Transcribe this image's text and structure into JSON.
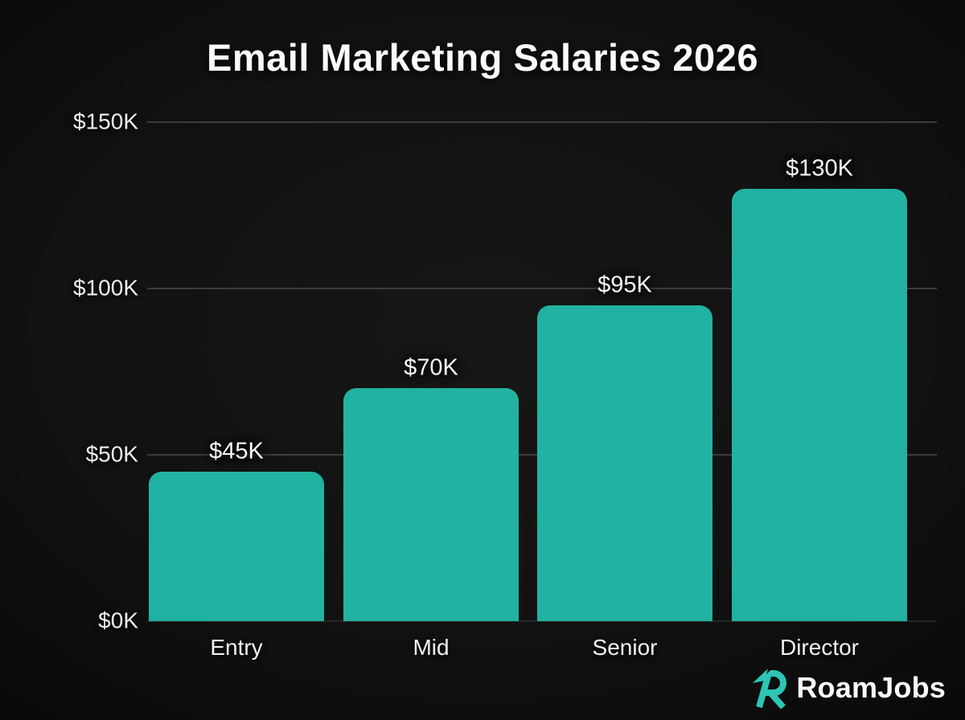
{
  "title": "Email Marketing Salaries 2026",
  "chart_data": {
    "type": "bar",
    "title": "Email Marketing Salaries 2026",
    "categories": [
      "Entry",
      "Mid",
      "Senior",
      "Director"
    ],
    "values": [
      45,
      70,
      95,
      130
    ],
    "value_labels": [
      "$45K",
      "$70K",
      "$95K",
      "$130K"
    ],
    "xlabel": "",
    "ylabel": "",
    "ylim": [
      0,
      150
    ],
    "y_ticks": [
      0,
      50,
      100,
      150
    ],
    "y_tick_labels": [
      "$0K",
      "$50K",
      "$100K",
      "$150K"
    ],
    "grid": true,
    "legend": false,
    "bar_color": "#21b2a1",
    "grid_color": "#3c3c3c",
    "background_color": "#111211",
    "text_color": "#f4f4f4"
  },
  "branding": {
    "logo_text": "RoamJobs",
    "logo_icon": "roamjobs-r-arrow-icon",
    "logo_accent_color": "#2ec4b6",
    "logo_text_color": "#fafafa"
  }
}
